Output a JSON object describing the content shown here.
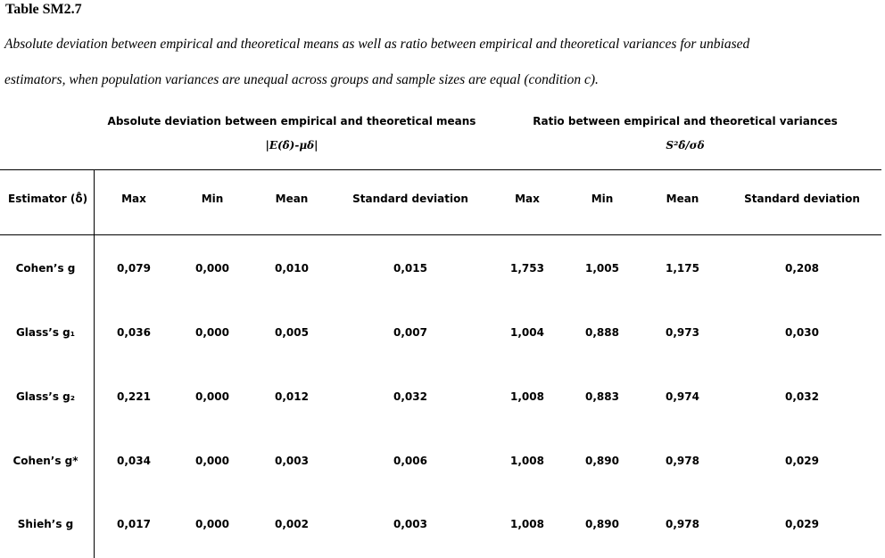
{
  "document": {
    "title": "Table SM2.7",
    "caption_line1": "Absolute deviation between empirical and theoretical means as well as ratio between empirical and theoretical variances for unbiased",
    "caption_line2": "estimators, when population variances are unequal across groups and sample sizes are equal (condition c)."
  },
  "table": {
    "group_headers": [
      {
        "label": "Absolute deviation between empirical and theoretical means",
        "formula": "|E(δ̂)-μδ|"
      },
      {
        "label": "Ratio between empirical and theoretical variances",
        "formula": "S²δ̂/σδ"
      }
    ],
    "row_header_label": "Estimator (δ̂)",
    "columns": [
      "Max",
      "Min",
      "Mean",
      "Standard deviation",
      "Max",
      "Min",
      "Mean",
      "Standard deviation"
    ],
    "rows": [
      {
        "estimator": "Cohen’s g",
        "values": [
          "0,079",
          "0,000",
          "0,010",
          "0,015",
          "1,753",
          "1,005",
          "1,175",
          "0,208"
        ]
      },
      {
        "estimator": "Glass’s g₁",
        "values": [
          "0,036",
          "0,000",
          "0,005",
          "0,007",
          "1,004",
          "0,888",
          "0,973",
          "0,030"
        ]
      },
      {
        "estimator": "Glass’s g₂",
        "values": [
          "0,221",
          "0,000",
          "0,012",
          "0,032",
          "1,008",
          "0,883",
          "0,974",
          "0,032"
        ]
      },
      {
        "estimator": "Cohen’s g*",
        "values": [
          "0,034",
          "0,000",
          "0,003",
          "0,006",
          "1,008",
          "0,890",
          "0,978",
          "0,029"
        ]
      },
      {
        "estimator": "Shieh’s g",
        "values": [
          "0,017",
          "0,000",
          "0,002",
          "0,003",
          "1,008",
          "0,890",
          "0,978",
          "0,029"
        ]
      }
    ]
  }
}
